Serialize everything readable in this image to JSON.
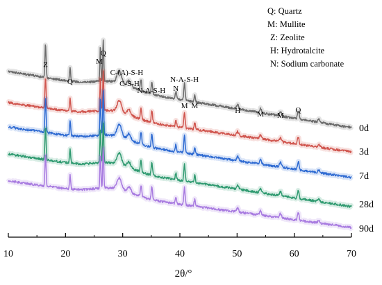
{
  "chart_data": {
    "type": "line",
    "title": "",
    "xlabel": "2θ/°",
    "ylabel": "",
    "xlim": [
      10,
      70
    ],
    "x_ticks": [
      "10",
      "20",
      "30",
      "40",
      "50",
      "60",
      "70"
    ],
    "y_axis_visible": false,
    "grid": false,
    "legend_placement": "top-right",
    "legend": [
      "Q: Quartz",
      "M: Mullite",
      "Z: Zeolite",
      "H: Hydrotalcite",
      "N: Sodium carbonate"
    ],
    "colors": {
      "0d": "#6b6b6b",
      "3d": "#d0564f",
      "7d": "#2f6bd2",
      "28d": "#2f9a70",
      "90d": "#a87be0"
    },
    "series_label_colors": {
      "0d": "#000000",
      "3d": "#d0564f",
      "7d": "#2f6bd2",
      "28d": "#2f9a70",
      "90d": "#a87be0"
    },
    "series": [
      {
        "name": "0d",
        "start_level": 100,
        "end_level": 0
      },
      {
        "name": "3d",
        "start_level": 100,
        "end_level": 0
      },
      {
        "name": "7d",
        "start_level": 100,
        "end_level": 0
      },
      {
        "name": "28d",
        "start_level": 100,
        "end_level": 0
      },
      {
        "name": "90d",
        "start_level": 100,
        "end_level": 0
      }
    ],
    "peaks": [
      {
        "x": 16.5,
        "h": 48,
        "w": 0.14
      },
      {
        "x": 20.8,
        "h": 20,
        "w": 0.14
      },
      {
        "x": 26.1,
        "h": 52,
        "w": 0.12
      },
      {
        "x": 26.6,
        "h": 60,
        "w": 0.13
      },
      {
        "x": 29.4,
        "h": 17,
        "w": 0.55
      },
      {
        "x": 31.1,
        "h": 8,
        "w": 0.45
      },
      {
        "x": 33.2,
        "h": 17,
        "w": 0.16
      },
      {
        "x": 35.1,
        "h": 19,
        "w": 0.16
      },
      {
        "x": 39.3,
        "h": 10,
        "w": 0.16
      },
      {
        "x": 40.8,
        "h": 25,
        "w": 0.16
      },
      {
        "x": 42.6,
        "h": 10,
        "w": 0.16
      },
      {
        "x": 50.1,
        "h": 6,
        "w": 0.25
      },
      {
        "x": 54.1,
        "h": 6,
        "w": 0.25
      },
      {
        "x": 57.6,
        "h": 6,
        "w": 0.25
      },
      {
        "x": 60.7,
        "h": 11,
        "w": 0.2
      },
      {
        "x": 64.3,
        "h": 4,
        "w": 0.25
      }
    ],
    "peak_labels": [
      {
        "text": "Z",
        "x": 16.5
      },
      {
        "text": "Q",
        "x": 20.8
      },
      {
        "text": "M",
        "x": 25.9
      },
      {
        "text": "Q",
        "x": 26.6
      },
      {
        "text": "C-(A)-S-H",
        "x": 30.7
      },
      {
        "text": "C-S-H",
        "x": 31.2
      },
      {
        "text": "N-A-S-H",
        "x": 35.0
      },
      {
        "text": "N-A-S-H",
        "x": 40.8
      },
      {
        "text": "M",
        "x": 40.8
      },
      {
        "text": "N",
        "x": 39.3
      },
      {
        "text": "M",
        "x": 42.6
      },
      {
        "text": "H",
        "x": 50.1
      },
      {
        "text": "M",
        "x": 54.1
      },
      {
        "text": "M",
        "x": 57.6
      },
      {
        "text": "Q",
        "x": 60.7
      }
    ]
  }
}
